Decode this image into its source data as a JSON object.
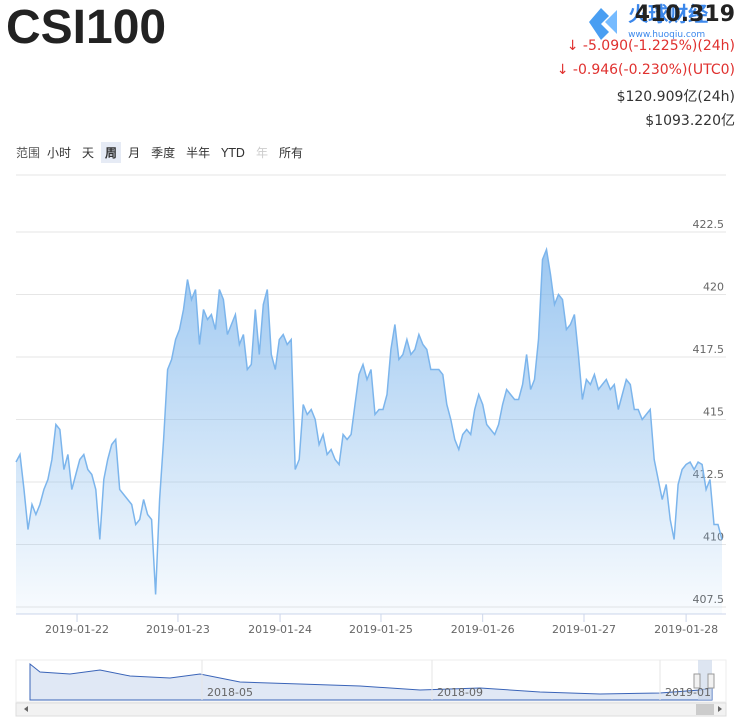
{
  "header": {
    "title": "CSI100",
    "price": "410.319",
    "changes": [
      "-5.090(-1.225%)(24h)",
      "-0.946(-0.230%)(UTC0)"
    ],
    "volume": "$120.909亿(24h)",
    "market_cap": "$1093.220亿"
  },
  "watermark": {
    "title": "火球财经",
    "url": "www.huoqiu.com"
  },
  "range_selector": {
    "label": "范围",
    "buttons": [
      "小时",
      "天",
      "周",
      "月",
      "季度",
      "半年",
      "YTD",
      "年",
      "所有"
    ],
    "selected": 2,
    "disabled": 7
  },
  "chart_data": {
    "type": "area",
    "color": "#7cb5ec",
    "values": [
      413.3,
      413.6,
      412.2,
      410.6,
      411.6,
      411.2,
      411.6,
      412.2,
      412.6,
      413.4,
      414.8,
      414.6,
      413.0,
      413.6,
      412.2,
      412.8,
      413.4,
      413.6,
      413.0,
      412.8,
      412.2,
      410.2,
      412.6,
      413.4,
      414.0,
      414.2,
      412.2,
      412.0,
      411.8,
      411.6,
      410.8,
      411.0,
      411.8,
      411.2,
      411.0,
      408.0,
      411.8,
      414.2,
      417.0,
      417.4,
      418.2,
      418.6,
      419.4,
      420.6,
      419.8,
      420.2,
      418.0,
      419.4,
      419.0,
      419.2,
      418.6,
      420.2,
      419.8,
      418.4,
      418.8,
      419.2,
      418.0,
      418.4,
      417.0,
      417.2,
      419.4,
      417.6,
      419.6,
      420.2,
      417.6,
      417.0,
      418.2,
      418.4,
      418.0,
      418.2,
      413.0,
      413.4,
      415.6,
      415.2,
      415.4,
      415.0,
      414.0,
      414.4,
      413.6,
      413.8,
      413.4,
      413.2,
      414.4,
      414.2,
      414.4,
      415.6,
      416.8,
      417.2,
      416.6,
      417.0,
      415.2,
      415.4,
      415.4,
      416.0,
      417.8,
      418.8,
      417.4,
      417.6,
      418.2,
      417.6,
      417.8,
      418.4,
      418.0,
      417.8,
      417.0,
      417.0,
      417.0,
      416.8,
      415.6,
      415.0,
      414.2,
      413.8,
      414.4,
      414.6,
      414.4,
      415.4,
      416.0,
      415.6,
      414.8,
      414.6,
      414.4,
      414.8,
      415.6,
      416.2,
      416.0,
      415.8,
      415.8,
      416.4,
      417.6,
      416.2,
      416.6,
      418.2,
      421.4,
      421.8,
      420.8,
      419.6,
      420.0,
      419.8,
      418.6,
      418.8,
      419.2,
      417.6,
      415.8,
      416.6,
      416.4,
      416.8,
      416.2,
      416.4,
      416.6,
      416.2,
      416.4,
      415.4,
      416.0,
      416.6,
      416.4,
      415.4,
      415.4,
      415.0,
      415.2,
      415.4,
      413.4,
      412.6,
      411.8,
      412.4,
      411.0,
      410.2,
      412.4,
      413.0,
      413.2,
      413.3,
      413.0,
      413.3,
      413.2,
      412.2,
      412.6,
      410.8,
      410.8,
      410.2
    ],
    "xlim": [
      0,
      178
    ],
    "xticks": [
      {
        "value": 15.3,
        "label": "2019-01-22"
      },
      {
        "value": 40.6,
        "label": "2019-01-23"
      },
      {
        "value": 66.2,
        "label": "2019-01-24"
      },
      {
        "value": 91.5,
        "label": "2019-01-25"
      },
      {
        "value": 117.0,
        "label": "2019-01-26"
      },
      {
        "value": 142.4,
        "label": "2019-01-27"
      },
      {
        "value": 168.0,
        "label": "2019-01-28"
      }
    ],
    "ylim": [
      407.22,
      424.78
    ],
    "yticks": [
      407.5,
      410,
      412.5,
      415,
      417.5,
      420,
      422.5
    ],
    "grid": true
  },
  "navigator": {
    "labels": [
      "2018-05",
      "2018-09",
      "2019-01"
    ]
  }
}
